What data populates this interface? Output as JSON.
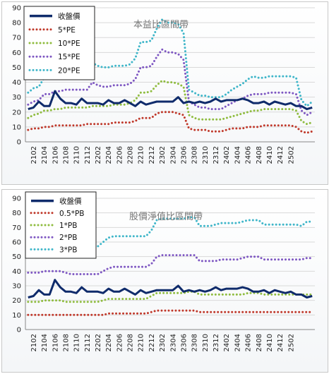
{
  "chart_data": [
    {
      "type": "line",
      "title": "本益比區間帶",
      "xlabel": "",
      "ylabel": "",
      "ylim": [
        0,
        90
      ],
      "yticks": [
        0,
        10,
        20,
        30,
        40,
        50,
        60,
        70,
        80,
        90
      ],
      "x_tick_labels": [
        "2102",
        "2104",
        "2106",
        "2108",
        "2110",
        "2112",
        "2202",
        "2204",
        "2206",
        "2208",
        "2210",
        "2212",
        "2302",
        "2304",
        "2306",
        "2308",
        "2310",
        "2312",
        "2402",
        "2404",
        "2406",
        "2408",
        "2410",
        "2412",
        "2502"
      ],
      "grid": true,
      "legend_position": "top-left",
      "series": [
        {
          "name": "收盤價",
          "color": "#0f2b6b",
          "style": "solid",
          "values": [
            22,
            23,
            27,
            24,
            24,
            34,
            29,
            26,
            26,
            25,
            29,
            26,
            26,
            26,
            25,
            28,
            26,
            26,
            28,
            26,
            24,
            27,
            25,
            26,
            27,
            27,
            27,
            27,
            30,
            26,
            27,
            26,
            27,
            26,
            27,
            29,
            27,
            28,
            28,
            28,
            29,
            28,
            26,
            26,
            27,
            25,
            27,
            26,
            25,
            26,
            24,
            24,
            22,
            23
          ]
        },
        {
          "name": "5*PE",
          "color": "#c0392b",
          "style": "dotted",
          "values": [
            8,
            9,
            9,
            10,
            10,
            11,
            11,
            11,
            11,
            11,
            11,
            12,
            12,
            12,
            12,
            12,
            13,
            13,
            13,
            13,
            14,
            16,
            16,
            16,
            19,
            20,
            20,
            20,
            19,
            18,
            9,
            8,
            8,
            8,
            7,
            7,
            7,
            8,
            9,
            9,
            9,
            10,
            10,
            10,
            11,
            11,
            11,
            11,
            11,
            11,
            10,
            7,
            6,
            7
          ]
        },
        {
          "name": "10*PE",
          "color": "#8fbc3f",
          "style": "dotted",
          "values": [
            16,
            18,
            19,
            21,
            21,
            22,
            22,
            23,
            23,
            23,
            23,
            23,
            24,
            24,
            24,
            24,
            25,
            25,
            25,
            26,
            28,
            33,
            33,
            34,
            38,
            41,
            40,
            40,
            39,
            37,
            18,
            16,
            15,
            15,
            15,
            15,
            15,
            16,
            17,
            18,
            19,
            20,
            21,
            21,
            22,
            22,
            22,
            22,
            22,
            22,
            21,
            14,
            12,
            13
          ]
        },
        {
          "name": "15*PE",
          "color": "#7e57c2",
          "style": "dotted",
          "values": [
            25,
            27,
            28,
            32,
            32,
            34,
            34,
            35,
            35,
            35,
            35,
            35,
            40,
            38,
            37,
            37,
            38,
            38,
            38,
            39,
            42,
            50,
            50,
            51,
            57,
            62,
            60,
            60,
            59,
            55,
            27,
            25,
            23,
            23,
            22,
            22,
            22,
            24,
            26,
            28,
            29,
            31,
            32,
            32,
            32,
            33,
            33,
            33,
            33,
            33,
            32,
            21,
            18,
            20
          ]
        },
        {
          "name": "20*PE",
          "color": "#3fb6c9",
          "style": "dotted",
          "values": [
            33,
            36,
            37,
            43,
            43,
            46,
            46,
            47,
            47,
            47,
            47,
            47,
            53,
            51,
            50,
            50,
            51,
            51,
            51,
            52,
            56,
            67,
            67,
            68,
            76,
            82,
            80,
            80,
            79,
            73,
            35,
            33,
            31,
            31,
            30,
            30,
            30,
            32,
            35,
            37,
            39,
            42,
            44,
            43,
            43,
            44,
            44,
            44,
            44,
            44,
            43,
            28,
            24,
            27
          ]
        }
      ]
    },
    {
      "type": "line",
      "title": "股價淨值比區間帶",
      "xlabel": "",
      "ylabel": "",
      "ylim": [
        0,
        90
      ],
      "yticks": [
        0,
        10,
        20,
        30,
        40,
        50,
        60,
        70,
        80,
        90
      ],
      "x_tick_labels": [
        "2102",
        "2104",
        "2106",
        "2108",
        "2110",
        "2112",
        "2202",
        "2204",
        "2206",
        "2208",
        "2210",
        "2212",
        "2302",
        "2304",
        "2306",
        "2308",
        "2310",
        "2312",
        "2402",
        "2404",
        "2406",
        "2408",
        "2410",
        "2412",
        "2502"
      ],
      "grid": true,
      "legend_position": "top-left",
      "series": [
        {
          "name": "收盤價",
          "color": "#0f2b6b",
          "style": "solid",
          "values": [
            22,
            23,
            27,
            24,
            24,
            34,
            29,
            26,
            26,
            25,
            29,
            26,
            26,
            26,
            25,
            28,
            26,
            26,
            28,
            26,
            24,
            27,
            25,
            26,
            27,
            27,
            27,
            27,
            30,
            26,
            27,
            26,
            27,
            26,
            27,
            29,
            27,
            28,
            28,
            28,
            29,
            28,
            26,
            26,
            27,
            25,
            27,
            26,
            25,
            26,
            24,
            24,
            22,
            23
          ]
        },
        {
          "name": "0.5*PB",
          "color": "#c0392b",
          "style": "dotted",
          "values": [
            10,
            10,
            10,
            10,
            10,
            10,
            10,
            10,
            10,
            10,
            10,
            10,
            10,
            10,
            10,
            11,
            11,
            11,
            11,
            11,
            11,
            11,
            11,
            12,
            13,
            13,
            13,
            13,
            13,
            13,
            13,
            13,
            12,
            12,
            12,
            12,
            12,
            12,
            12,
            12,
            12,
            12,
            12,
            12,
            12,
            12,
            12,
            12,
            12,
            12,
            12,
            12,
            12,
            12
          ]
        },
        {
          "name": "1*PB",
          "color": "#8fbc3f",
          "style": "dotted",
          "values": [
            19,
            19,
            19,
            20,
            20,
            20,
            20,
            19,
            19,
            19,
            19,
            19,
            19,
            19,
            20,
            21,
            21,
            21,
            21,
            21,
            21,
            21,
            21,
            23,
            25,
            25,
            25,
            25,
            25,
            25,
            26,
            26,
            24,
            24,
            24,
            24,
            24,
            24,
            24,
            24,
            24,
            25,
            25,
            25,
            24,
            24,
            24,
            24,
            24,
            24,
            24,
            24,
            24,
            24
          ]
        },
        {
          "name": "2*PB",
          "color": "#7e57c2",
          "style": "dotted",
          "values": [
            39,
            39,
            39,
            40,
            40,
            40,
            40,
            39,
            38,
            38,
            38,
            38,
            38,
            38,
            40,
            42,
            43,
            43,
            43,
            43,
            43,
            43,
            43,
            45,
            50,
            51,
            51,
            51,
            51,
            51,
            51,
            51,
            47,
            47,
            47,
            47,
            48,
            48,
            48,
            48,
            49,
            50,
            50,
            50,
            48,
            48,
            48,
            48,
            48,
            48,
            48,
            48,
            49,
            49
          ]
        },
        {
          "name": "3*PB",
          "color": "#3fb6c9",
          "style": "dotted",
          "values": [
            58,
            58,
            58,
            59,
            59,
            59,
            59,
            58,
            57,
            57,
            57,
            57,
            57,
            57,
            60,
            63,
            64,
            64,
            64,
            64,
            64,
            64,
            64,
            68,
            75,
            76,
            76,
            76,
            76,
            76,
            77,
            77,
            71,
            71,
            71,
            72,
            73,
            73,
            73,
            73,
            74,
            75,
            75,
            75,
            72,
            72,
            72,
            72,
            72,
            72,
            72,
            71,
            74,
            74
          ]
        }
      ]
    }
  ]
}
